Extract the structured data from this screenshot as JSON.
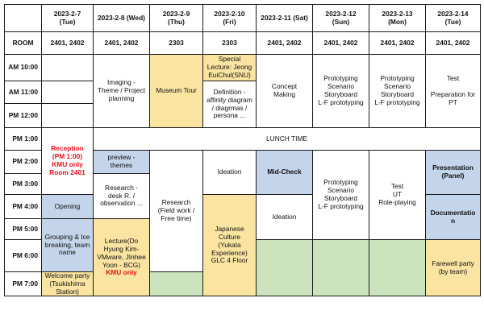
{
  "days": [
    {
      "date": "2023-2-7",
      "dow": "(Tue)",
      "room": "2401, 2402"
    },
    {
      "date": "2023-2-8 (Wed)",
      "dow": "",
      "room": "2401, 2402"
    },
    {
      "date": "2023-2-9",
      "dow": "(Thu)",
      "room": "2303"
    },
    {
      "date": "2023-2-10",
      "dow": "(Fri)",
      "room": "2303"
    },
    {
      "date": "2023-2-11 (Sat)",
      "dow": "",
      "room": "2401, 2402"
    },
    {
      "date": "2023-2-12",
      "dow": "(Sun)",
      "room": "2401, 2402"
    },
    {
      "date": "2023-2-13",
      "dow": "(Mon)",
      "room": "2401, 2402"
    },
    {
      "date": "2023-2-14",
      "dow": "(Tue)",
      "room": "2401, 2402"
    }
  ],
  "room_label": "ROOM",
  "times": [
    "AM 10:00",
    "AM 11:00",
    "PM 12:00",
    "PM 1:00",
    "PM 2:00",
    "PM 3:00",
    "PM 4:00",
    "PM 5:00",
    "PM 6:00",
    "PM 7:00"
  ],
  "cells": {
    "imaging": "Imaging -\nTheme / Project\nplanning",
    "museum": "Museum Tour",
    "special": "Special\nLecture: Jeong\nEuiChul(SNU)",
    "definition": "Definition -\naffinity diagram\n/ diagrmas /\npersona ...",
    "concept": "Concept\nMaking",
    "proto12": "Prototyping\nScenario\nStoryboard\nL-F prototyping",
    "proto13": "Prototyping\nScenario\nStoryboard\nL-F prototyping",
    "test14": "Test\n\nPreparation for\nPT",
    "lunch": "LUNCH TIME",
    "reception": "Reception\n(PM 1:00)\nKMU only\nRoom 2401",
    "preview": "preview -\nthemes",
    "ideation10": "Ideation",
    "midcheck": "Mid-Check",
    "proto12b": "Prototyping\nScenario\nStoryboard\nL-F prototyping",
    "test13": "Test\nUT\nRole-playing",
    "presentation": "Presentation\n(Panel)",
    "documentation": "Documentatio\nn",
    "opening": "Opening",
    "research_desk": "Research -\ndesk R. /\nobservation ...",
    "research_field": "Research\n(Field work /\nFree time)",
    "grouping": "Grouping & Ice\nbreaking, team\nname",
    "japanese": "Japanese\nCulture\n(Yukata\nExperience)\nGLC 4 Floor",
    "ideation11": "Ideation",
    "lecture": "Lecture(Do\nHyung Kim-\nVMware, JInhee\nYoon - BCG)",
    "kmu_only": "KMU only",
    "welcome": "Welcome party\n(Tsukishima\nStation)",
    "farewell": "Farewell party\n(by team)"
  }
}
